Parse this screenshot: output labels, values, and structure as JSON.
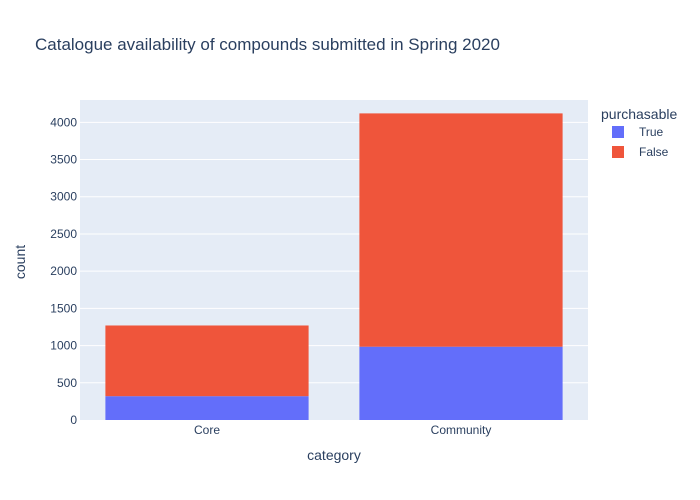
{
  "chart_data": {
    "type": "bar",
    "barmode": "stack",
    "title": "Catalogue availability of compounds submitted in Spring 2020",
    "xlabel": "category",
    "ylabel": "count",
    "categories": [
      "Core",
      "Community"
    ],
    "series": [
      {
        "name": "True",
        "values": [
          320,
          985
        ],
        "color": "#636efa"
      },
      {
        "name": "False",
        "values": [
          950,
          3135
        ],
        "color": "#ef553b"
      }
    ],
    "ylim": [
      0,
      4300
    ],
    "yticks": [
      0,
      500,
      1000,
      1500,
      2000,
      2500,
      3000,
      3500,
      4000
    ],
    "grid": true,
    "legend": {
      "title": "purchasable",
      "placement": "right"
    },
    "colors": {
      "plot_background": "#e5ecf6",
      "gridline": "#ffffff",
      "text": "#2a3f5f"
    }
  }
}
